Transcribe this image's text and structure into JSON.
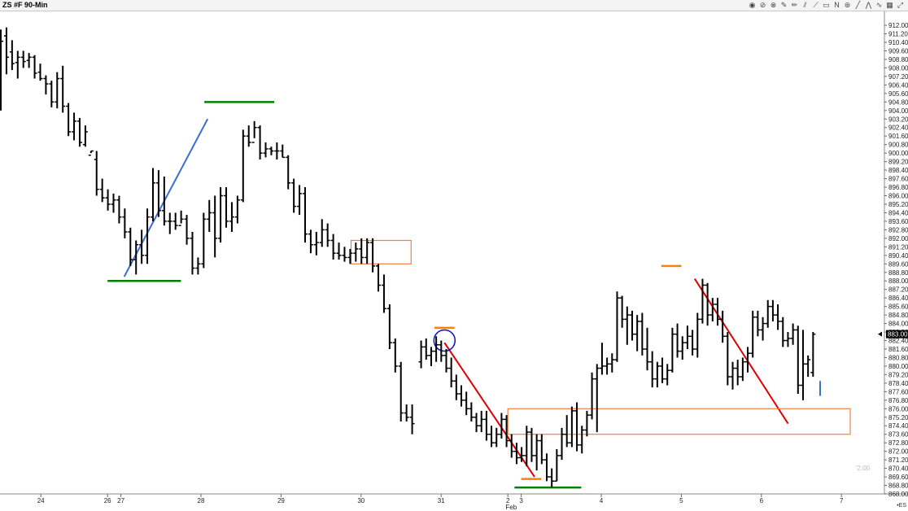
{
  "window": {
    "title": "ZS #F 90-Min",
    "ticker_label": "•ES",
    "watermark": "'2:00"
  },
  "toolbar": {
    "icons": [
      "globe-icon",
      "no-entry-icon",
      "circle-target-icon",
      "ruler-icon",
      "pencil-icon",
      "parallel-lines-icon",
      "diagonal-lines-icon",
      "rectangle-icon",
      "n-pattern-icon",
      "cross-circle-icon",
      "trend-line-icon",
      "zigzag-icon",
      "wave-icon",
      "grid-icon",
      "expand-icon"
    ],
    "glyphs": [
      "◉",
      "⊘",
      "⊗",
      "✎",
      "✏",
      "⫽",
      "⟋",
      "▭",
      "N",
      "⊛",
      "╱",
      "⋀",
      "∿",
      "▦",
      "⤢"
    ]
  },
  "chart_data": {
    "type": "bar",
    "subtype": "ohlc",
    "title": "ZS #F 90-Min",
    "ylim": [
      868.0,
      913.0
    ],
    "y_tick_labels": [
      "912.00",
      "911.20",
      "910.40",
      "909.60",
      "908.80",
      "908.00",
      "907.20",
      "906.40",
      "905.60",
      "904.80",
      "904.00",
      "903.20",
      "902.40",
      "901.60",
      "900.80",
      "900.00",
      "899.20",
      "898.40",
      "897.60",
      "896.80",
      "896.00",
      "895.20",
      "894.40",
      "893.60",
      "892.80",
      "892.00",
      "891.20",
      "890.40",
      "889.60",
      "888.80",
      "888.00",
      "887.20",
      "886.40",
      "885.60",
      "884.80",
      "884.00",
      "883.20",
      "882.40",
      "881.60",
      "880.80",
      "880.00",
      "879.20",
      "878.40",
      "877.60",
      "876.80",
      "876.00",
      "875.20",
      "874.40",
      "873.60",
      "872.80",
      "872.00",
      "871.20",
      "870.40",
      "869.60",
      "868.80",
      "868.00"
    ],
    "last_price": "883.00",
    "x_labels": [
      {
        "label": "24",
        "bar": 6
      },
      {
        "label": "26",
        "bar": 16
      },
      {
        "label": "27",
        "bar": 18
      },
      {
        "label": "28",
        "bar": 30
      },
      {
        "label": "29",
        "bar": 42
      },
      {
        "label": "30",
        "bar": 54
      },
      {
        "label": "31",
        "bar": 66
      },
      {
        "label": "2",
        "bar": 76
      },
      {
        "label": "3",
        "bar": 78
      },
      {
        "label": "Feb",
        "bar": 76.5,
        "row": 2
      },
      {
        "label": "4",
        "bar": 90
      },
      {
        "label": "5",
        "bar": 102
      },
      {
        "label": "6",
        "bar": 114
      },
      {
        "label": "7",
        "bar": 126
      }
    ],
    "bars": [
      {
        "o": 905,
        "h": 911.6,
        "l": 904,
        "c": 910.5
      },
      {
        "o": 911,
        "h": 911.8,
        "l": 907.4,
        "c": 909
      },
      {
        "o": 909.5,
        "h": 910.6,
        "l": 907.8,
        "c": 908.4
      },
      {
        "o": 908.5,
        "h": 909.6,
        "l": 907,
        "c": 909
      },
      {
        "o": 909,
        "h": 909.6,
        "l": 908,
        "c": 908.6
      },
      {
        "o": 908.7,
        "h": 909.4,
        "l": 908,
        "c": 909
      },
      {
        "o": 909,
        "h": 909.2,
        "l": 907,
        "c": 907.5
      },
      {
        "o": 907.6,
        "h": 908.4,
        "l": 906.8,
        "c": 907
      },
      {
        "o": 907,
        "h": 907.3,
        "l": 905.5,
        "c": 906.5
      },
      {
        "o": 906.5,
        "h": 906.8,
        "l": 904.3,
        "c": 904.8
      },
      {
        "o": 904.8,
        "h": 907.6,
        "l": 904.2,
        "c": 907
      },
      {
        "o": 907,
        "h": 908.2,
        "l": 903.8,
        "c": 904.4
      },
      {
        "o": 904.4,
        "h": 904.7,
        "l": 901.6,
        "c": 902
      },
      {
        "o": 902,
        "h": 903.8,
        "l": 901.2,
        "c": 903
      },
      {
        "o": 903,
        "h": 903.3,
        "l": 900.6,
        "c": 901
      },
      {
        "o": 900.8,
        "h": 902.6,
        "l": 900.6,
        "c": 902
      },
      {
        "o": 899.8,
        "h": 900.2,
        "l": 900,
        "c": 900.2
      },
      {
        "o": 899.4,
        "h": 900.2,
        "l": 896,
        "c": 896.6
      },
      {
        "o": 896.6,
        "h": 897.6,
        "l": 895.4,
        "c": 895.8
      },
      {
        "o": 895.8,
        "h": 896.6,
        "l": 894.6,
        "c": 895.2
      },
      {
        "o": 895.2,
        "h": 896.2,
        "l": 894.4,
        "c": 895.6
      },
      {
        "o": 895.6,
        "h": 896,
        "l": 893.4,
        "c": 894
      },
      {
        "o": 894,
        "h": 894.8,
        "l": 892,
        "c": 892.6
      },
      {
        "o": 892.6,
        "h": 893,
        "l": 889.4,
        "c": 890
      },
      {
        "o": 890,
        "h": 891.8,
        "l": 888.6,
        "c": 891.4
      },
      {
        "o": 891.4,
        "h": 892.8,
        "l": 889.6,
        "c": 890.4
      },
      {
        "o": 890.4,
        "h": 894.8,
        "l": 889.6,
        "c": 894
      },
      {
        "o": 894,
        "h": 898.6,
        "l": 893.6,
        "c": 897.2
      },
      {
        "o": 897.2,
        "h": 898.4,
        "l": 894,
        "c": 894.6
      },
      {
        "o": 894.6,
        "h": 897.8,
        "l": 893.2,
        "c": 893.6
      },
      {
        "o": 893.6,
        "h": 894.4,
        "l": 892.4,
        "c": 893.6
      },
      {
        "o": 893.6,
        "h": 894.4,
        "l": 892.8,
        "c": 893.2
      },
      {
        "o": 893.2,
        "h": 894.6,
        "l": 893.4,
        "c": 893.8
      },
      {
        "o": 893.8,
        "h": 894.2,
        "l": 891.4,
        "c": 892
      },
      {
        "o": 892,
        "h": 892.6,
        "l": 888.6,
        "c": 889.2
      },
      {
        "o": 889.2,
        "h": 890.2,
        "l": 888.6,
        "c": 889.6
      },
      {
        "o": 889.6,
        "h": 894.4,
        "l": 889.2,
        "c": 893.8
      },
      {
        "o": 893.8,
        "h": 895.6,
        "l": 892.6,
        "c": 894.4
      },
      {
        "o": 894.4,
        "h": 896,
        "l": 890.2,
        "c": 892
      },
      {
        "o": 892,
        "h": 896.8,
        "l": 891.6,
        "c": 896
      },
      {
        "o": 896,
        "h": 896.8,
        "l": 893,
        "c": 893.6
      },
      {
        "o": 893.6,
        "h": 895.4,
        "l": 892.6,
        "c": 894
      },
      {
        "o": 894,
        "h": 896,
        "l": 893.4,
        "c": 895.6
      },
      {
        "o": 895.6,
        "h": 902.2,
        "l": 895.4,
        "c": 901.6
      },
      {
        "o": 901.6,
        "h": 902.6,
        "l": 900.6,
        "c": 901
      },
      {
        "o": 901,
        "h": 903,
        "l": 901.4,
        "c": 902.4
      },
      {
        "o": 902.4,
        "h": 902.6,
        "l": 899.4,
        "c": 900
      },
      {
        "o": 900,
        "h": 901,
        "l": 899.6,
        "c": 900.4
      },
      {
        "o": 900.4,
        "h": 900.6,
        "l": 899.8,
        "c": 900.2
      },
      {
        "o": 900.2,
        "h": 901,
        "l": 899.4,
        "c": 900.2
      },
      {
        "o": 900.2,
        "h": 900.8,
        "l": 899.6,
        "c": 899.6
      },
      {
        "o": 899.6,
        "h": 899.8,
        "l": 896.6,
        "c": 897.2
      },
      {
        "o": 897.2,
        "h": 897.6,
        "l": 894.4,
        "c": 895
      },
      {
        "o": 895,
        "h": 897,
        "l": 894.2,
        "c": 896.2
      },
      {
        "o": 896.2,
        "h": 896.8,
        "l": 891.6,
        "c": 892.4
      },
      {
        "o": 892.4,
        "h": 892.8,
        "l": 890.6,
        "c": 891.4
      },
      {
        "o": 891.4,
        "h": 892.6,
        "l": 890.4,
        "c": 891.6
      },
      {
        "o": 891.6,
        "h": 893.8,
        "l": 891.2,
        "c": 892.8
      },
      {
        "o": 892.8,
        "h": 893.4,
        "l": 891.2,
        "c": 891.8
      },
      {
        "o": 891.8,
        "h": 892.4,
        "l": 890,
        "c": 890.6
      },
      {
        "o": 890.6,
        "h": 891.6,
        "l": 890,
        "c": 890.4
      },
      {
        "o": 890.4,
        "h": 891.2,
        "l": 889.8,
        "c": 890.2
      },
      {
        "o": 890.2,
        "h": 891,
        "l": 889.6,
        "c": 890.6
      },
      {
        "o": 890.6,
        "h": 891.6,
        "l": 889.8,
        "c": 891
      },
      {
        "o": 891,
        "h": 892,
        "l": 889.6,
        "c": 890.2
      },
      {
        "o": 890.2,
        "h": 892,
        "l": 889.6,
        "c": 891.6
      },
      {
        "o": 891.6,
        "h": 892,
        "l": 888.8,
        "c": 889.4
      },
      {
        "o": 889.4,
        "h": 889.6,
        "l": 887,
        "c": 887.6
      },
      {
        "o": 887.6,
        "h": 888.6,
        "l": 885,
        "c": 885.4
      },
      {
        "o": 885.4,
        "h": 885.8,
        "l": 881.6,
        "c": 882.2
      },
      {
        "o": 882.2,
        "h": 882.6,
        "l": 879.4,
        "c": 880
      },
      {
        "o": 880,
        "h": 880.4,
        "l": 874.8,
        "c": 875.6
      },
      {
        "o": 875.6,
        "h": 876.4,
        "l": 874.8,
        "c": 875.2
      }
    ],
    "bars_part2": [
      {
        "o": 875.2,
        "h": 876.4,
        "l": 873.6,
        "c": 874.6
      }
    ],
    "bars_right": [
      {
        "o": 880.4,
        "h": 882.4,
        "l": 879.8,
        "c": 881.8
      },
      {
        "o": 881.8,
        "h": 882.6,
        "l": 880.6,
        "c": 881
      },
      {
        "o": 881,
        "h": 881.8,
        "l": 880,
        "c": 881.4
      },
      {
        "o": 881.4,
        "h": 882.8,
        "l": 880.4,
        "c": 882
      },
      {
        "o": 882,
        "h": 882.4,
        "l": 880.4,
        "c": 881
      },
      {
        "o": 881,
        "h": 881.6,
        "l": 879.4,
        "c": 879.8
      },
      {
        "o": 879.8,
        "h": 880.8,
        "l": 878,
        "c": 878.6
      },
      {
        "o": 878.6,
        "h": 879.2,
        "l": 876.8,
        "c": 877.4
      },
      {
        "o": 877.4,
        "h": 878.2,
        "l": 876.2,
        "c": 876.8
      },
      {
        "o": 876.8,
        "h": 877.6,
        "l": 875.4,
        "c": 876
      },
      {
        "o": 876,
        "h": 876.6,
        "l": 874.8,
        "c": 875.2
      },
      {
        "o": 875.2,
        "h": 875.6,
        "l": 873.8,
        "c": 874.4
      },
      {
        "o": 874.4,
        "h": 875.8,
        "l": 873.8,
        "c": 875
      },
      {
        "o": 875,
        "h": 875.8,
        "l": 873,
        "c": 873.6
      },
      {
        "o": 873.6,
        "h": 874.4,
        "l": 872.4,
        "c": 872.8
      },
      {
        "o": 872.8,
        "h": 874.2,
        "l": 872.4,
        "c": 873.6
      },
      {
        "o": 873.6,
        "h": 875.6,
        "l": 873.2,
        "c": 875
      },
      {
        "o": 875,
        "h": 875.4,
        "l": 872.4,
        "c": 873
      },
      {
        "o": 873,
        "h": 873.6,
        "l": 871.4,
        "c": 872
      },
      {
        "o": 872,
        "h": 872.8,
        "l": 870.8,
        "c": 871.4
      },
      {
        "o": 871.4,
        "h": 872.4,
        "l": 871,
        "c": 871.6
      },
      {
        "o": 871.6,
        "h": 874.4,
        "l": 870.6,
        "c": 873.8
      },
      {
        "o": 873.8,
        "h": 874.2,
        "l": 871,
        "c": 871.6
      },
      {
        "o": 871.6,
        "h": 873.6,
        "l": 870.2,
        "c": 873
      },
      {
        "o": 873,
        "h": 873.6,
        "l": 870.8,
        "c": 871.2
      },
      {
        "o": 871.2,
        "h": 871.8,
        "l": 869.2,
        "c": 869.6
      },
      {
        "o": 869.6,
        "h": 870.4,
        "l": 868.6,
        "c": 869.2
      },
      {
        "o": 869.2,
        "h": 872.2,
        "l": 869.2,
        "c": 871.6
      },
      {
        "o": 871.6,
        "h": 874.2,
        "l": 871.2,
        "c": 873.6
      },
      {
        "o": 873.6,
        "h": 875.4,
        "l": 872.4,
        "c": 872.8
      },
      {
        "o": 872.8,
        "h": 876.2,
        "l": 872.4,
        "c": 875.8
      },
      {
        "o": 875.8,
        "h": 876.6,
        "l": 872,
        "c": 872.6
      },
      {
        "o": 872.6,
        "h": 874.4,
        "l": 871.8,
        "c": 874
      },
      {
        "o": 874,
        "h": 875.8,
        "l": 873.4,
        "c": 875.4
      },
      {
        "o": 875.4,
        "h": 879.4,
        "l": 875,
        "c": 878.8
      },
      {
        "o": 878.8,
        "h": 880.2,
        "l": 873.8,
        "c": 879.8
      },
      {
        "o": 879.8,
        "h": 882.2,
        "l": 879.2,
        "c": 880
      },
      {
        "o": 880,
        "h": 880.8,
        "l": 879.2,
        "c": 880.2
      },
      {
        "o": 880.2,
        "h": 881.2,
        "l": 879.4,
        "c": 880.6
      },
      {
        "o": 880.6,
        "h": 887,
        "l": 880.4,
        "c": 886.4
      },
      {
        "o": 886.4,
        "h": 886.6,
        "l": 883.6,
        "c": 884.4
      },
      {
        "o": 884.4,
        "h": 885.6,
        "l": 882,
        "c": 884.8
      },
      {
        "o": 884.8,
        "h": 885.2,
        "l": 882.4,
        "c": 883
      },
      {
        "o": 883,
        "h": 884.8,
        "l": 881.4,
        "c": 884.2
      },
      {
        "o": 884.2,
        "h": 885,
        "l": 881,
        "c": 881.6
      },
      {
        "o": 881.6,
        "h": 883.6,
        "l": 879.6,
        "c": 880.4
      },
      {
        "o": 880.4,
        "h": 881.4,
        "l": 878,
        "c": 878.8
      },
      {
        "o": 878.8,
        "h": 880.4,
        "l": 878,
        "c": 880
      },
      {
        "o": 880,
        "h": 880.8,
        "l": 878.4,
        "c": 878.8
      },
      {
        "o": 878.8,
        "h": 880.2,
        "l": 878.2,
        "c": 879.6
      },
      {
        "o": 879.6,
        "h": 883.6,
        "l": 879.4,
        "c": 883
      },
      {
        "o": 883,
        "h": 884,
        "l": 880.8,
        "c": 881.4
      },
      {
        "o": 881.4,
        "h": 882.8,
        "l": 880.6,
        "c": 882.2
      },
      {
        "o": 882.2,
        "h": 883.8,
        "l": 881.6,
        "c": 882.8
      },
      {
        "o": 882.8,
        "h": 883.4,
        "l": 881,
        "c": 881.6
      },
      {
        "o": 881.6,
        "h": 885,
        "l": 880.8,
        "c": 884.4
      },
      {
        "o": 884.4,
        "h": 888.2,
        "l": 884,
        "c": 887.6
      },
      {
        "o": 887.6,
        "h": 887.8,
        "l": 883.8,
        "c": 884.8
      },
      {
        "o": 884.8,
        "h": 886.4,
        "l": 884.2,
        "c": 885.8
      },
      {
        "o": 885.8,
        "h": 886.4,
        "l": 883.8,
        "c": 884.4
      },
      {
        "o": 884.4,
        "h": 885.2,
        "l": 882.2,
        "c": 882.8
      },
      {
        "o": 882.8,
        "h": 883.2,
        "l": 878.2,
        "c": 879
      },
      {
        "o": 879,
        "h": 880.4,
        "l": 877.8,
        "c": 879.8
      },
      {
        "o": 879.8,
        "h": 880.6,
        "l": 878.2,
        "c": 879
      },
      {
        "o": 879,
        "h": 880.8,
        "l": 878.6,
        "c": 880.4
      },
      {
        "o": 880.4,
        "h": 881.8,
        "l": 879.4,
        "c": 881.2
      },
      {
        "o": 881.2,
        "h": 885.2,
        "l": 880.8,
        "c": 884.6
      },
      {
        "o": 884.6,
        "h": 885.2,
        "l": 882.8,
        "c": 883.4
      },
      {
        "o": 883.4,
        "h": 884.6,
        "l": 882.4,
        "c": 884
      },
      {
        "o": 884,
        "h": 886.2,
        "l": 883.6,
        "c": 885.6
      },
      {
        "o": 885.6,
        "h": 886.2,
        "l": 884.2,
        "c": 884.8
      },
      {
        "o": 884.8,
        "h": 885.8,
        "l": 883.4,
        "c": 884.2
      },
      {
        "o": 884.2,
        "h": 884.6,
        "l": 881.8,
        "c": 882.4
      },
      {
        "o": 882.4,
        "h": 883.2,
        "l": 881.8,
        "c": 882.6
      },
      {
        "o": 882.6,
        "h": 884,
        "l": 882,
        "c": 883.4
      },
      {
        "o": 883.4,
        "h": 883.8,
        "l": 877.4,
        "c": 878.2
      },
      {
        "o": 878.2,
        "h": 883.4,
        "l": 876.8,
        "c": 880.2
      },
      {
        "o": 880.2,
        "h": 881,
        "l": 879,
        "c": 880.6
      },
      {
        "o": 879.4,
        "h": 883.2,
        "l": 879,
        "c": 883
      }
    ],
    "annotations": [
      {
        "kind": "h-segment",
        "color": "#008000",
        "y": 888.0,
        "x_bar": [
          16,
          27
        ]
      },
      {
        "kind": "h-segment",
        "color": "#008000",
        "y": 904.8,
        "x_bar": [
          30.5,
          41
        ]
      },
      {
        "kind": "h-segment",
        "color": "#008000",
        "y": 868.6,
        "x_bar": [
          77,
          87
        ]
      },
      {
        "kind": "h-segment",
        "color": "#ff8000",
        "y": 883.6,
        "x_bar": [
          65,
          68
        ]
      },
      {
        "kind": "h-segment",
        "color": "#ff8000",
        "y": 869.4,
        "x_bar": [
          78,
          81
        ]
      },
      {
        "kind": "h-segment",
        "color": "#ff8000",
        "y": 889.4,
        "x_bar": [
          99,
          102
        ]
      },
      {
        "kind": "trendline",
        "color": "#3a6fd0",
        "from": {
          "bar": 18.5,
          "y": 888.4
        },
        "to": {
          "bar": 31,
          "y": 903.2
        }
      },
      {
        "kind": "trendline",
        "color": "#e00000",
        "from": {
          "bar": 66.5,
          "y": 882.2
        },
        "to": {
          "bar": 80,
          "y": 869.6
        }
      },
      {
        "kind": "trendline",
        "color": "#e00000",
        "from": {
          "bar": 104,
          "y": 888.2
        },
        "to": {
          "bar": 118,
          "y": 874.6
        }
      },
      {
        "kind": "rectangle",
        "color": "#f08040",
        "x_bar": [
          52.5,
          61.5
        ],
        "y": [
          889.6,
          891.8
        ]
      },
      {
        "kind": "rectangle",
        "color": "#f08040",
        "x_bar": [
          76,
          128
        ],
        "y": [
          873.6,
          876.0
        ]
      },
      {
        "kind": "circle",
        "color": "#1010c0",
        "bar": 66.5,
        "y": 882.4
      }
    ]
  }
}
